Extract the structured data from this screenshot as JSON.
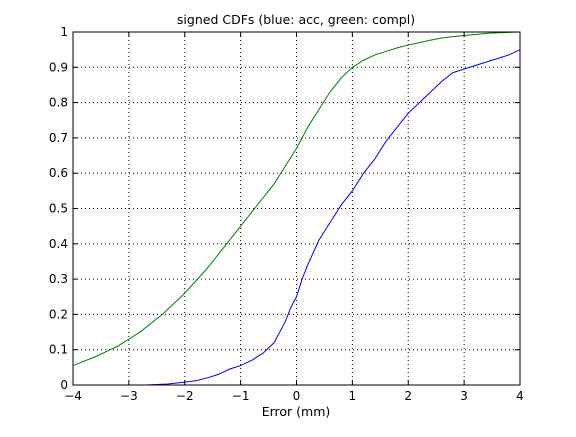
{
  "chart_data": {
    "type": "line",
    "title": "signed CDFs (blue: acc, green: compl)",
    "xlabel": "Error (mm)",
    "ylabel": "",
    "xlim": [
      -4,
      4
    ],
    "ylim": [
      0,
      1
    ],
    "grid": true,
    "xticks": [
      -4,
      -3,
      -2,
      -1,
      0,
      1,
      2,
      3,
      4
    ],
    "yticks": [
      0,
      0.1,
      0.2,
      0.3,
      0.4,
      0.5,
      0.6,
      0.7,
      0.8,
      0.9,
      1
    ],
    "xtick_labels": [
      "−4",
      "−3",
      "−2",
      "−1",
      "0",
      "1",
      "2",
      "3",
      "4"
    ],
    "ytick_labels": [
      "0",
      "0.1",
      "0.2",
      "0.3",
      "0.4",
      "0.5",
      "0.6",
      "0.7",
      "0.8",
      "0.9",
      "1"
    ],
    "series": [
      {
        "color": "#0000ff",
        "x": [
          -2.7,
          -2.3,
          -2.0,
          -1.8,
          -1.6,
          -1.4,
          -1.2,
          -1.0,
          -0.8,
          -0.6,
          -0.4,
          -0.3,
          -0.2,
          -0.1,
          0.0,
          0.1,
          0.2,
          0.4,
          0.6,
          0.8,
          1.0,
          1.2,
          1.4,
          1.6,
          1.8,
          2.0,
          2.2,
          2.4,
          2.6,
          2.8,
          3.0,
          3.2,
          3.4,
          3.6,
          3.8,
          4.0
        ],
        "y": [
          0.0,
          0.003,
          0.008,
          0.012,
          0.02,
          0.03,
          0.045,
          0.055,
          0.07,
          0.09,
          0.12,
          0.15,
          0.18,
          0.22,
          0.25,
          0.3,
          0.34,
          0.41,
          0.46,
          0.51,
          0.55,
          0.6,
          0.64,
          0.69,
          0.73,
          0.77,
          0.8,
          0.83,
          0.86,
          0.885,
          0.895,
          0.905,
          0.915,
          0.925,
          0.935,
          0.95
        ]
      },
      {
        "color": "#008000",
        "x": [
          -4.0,
          -3.6,
          -3.2,
          -2.8,
          -2.4,
          -2.0,
          -1.6,
          -1.2,
          -1.0,
          -0.8,
          -0.6,
          -0.4,
          -0.2,
          0.0,
          0.2,
          0.4,
          0.6,
          0.8,
          1.0,
          1.2,
          1.4,
          1.6,
          1.8,
          2.0,
          2.2,
          2.4,
          2.6,
          2.8,
          3.0,
          3.2,
          3.4,
          3.6,
          4.0
        ],
        "y": [
          0.055,
          0.08,
          0.11,
          0.15,
          0.2,
          0.26,
          0.33,
          0.41,
          0.45,
          0.49,
          0.53,
          0.57,
          0.62,
          0.67,
          0.73,
          0.78,
          0.83,
          0.87,
          0.9,
          0.92,
          0.935,
          0.945,
          0.955,
          0.963,
          0.97,
          0.977,
          0.983,
          0.987,
          0.99,
          0.993,
          0.996,
          0.998,
          1.0
        ]
      }
    ]
  }
}
